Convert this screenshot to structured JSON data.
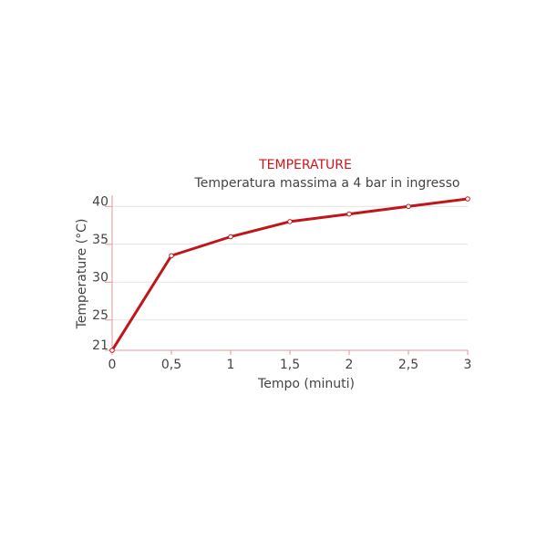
{
  "chart_data": {
    "type": "line",
    "title": "TEMPERATURE",
    "subtitle": "Temperatura massima a 4 bar in ingresso",
    "x_label": "Tempo (minuti)",
    "y_label": "Temperature (°C)",
    "x": [
      0,
      0.5,
      1,
      1.5,
      2,
      2.5,
      3
    ],
    "series": [
      {
        "name": "Temperatura",
        "color": "#c0161b",
        "values": [
          21,
          33.5,
          36,
          38,
          39,
          40,
          41
        ]
      }
    ],
    "xlim": [
      0,
      3
    ],
    "xticks": [
      0,
      {
        "value": 0.5,
        "label": "0,5"
      },
      1,
      {
        "value": 1.5,
        "label": "1,5"
      },
      2,
      {
        "value": 2.5,
        "label": "2,5"
      },
      3
    ],
    "ylim": [
      21,
      41
    ],
    "yticks": [
      21,
      25,
      30,
      35,
      40
    ],
    "grid": true
  }
}
